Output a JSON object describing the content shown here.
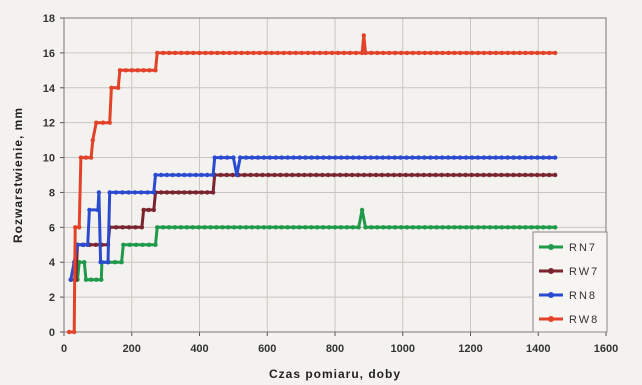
{
  "chart_data": {
    "type": "line",
    "title": "",
    "xlabel": "Czas pomiaru, doby",
    "ylabel": "Rozwarstwienie, mm",
    "xlim": [
      0,
      1600
    ],
    "ylim": [
      0,
      18
    ],
    "x_ticks": [
      0,
      200,
      400,
      600,
      800,
      1000,
      1200,
      1400,
      1600
    ],
    "y_ticks": [
      0,
      2,
      4,
      6,
      8,
      10,
      12,
      14,
      16,
      18
    ],
    "grid": true,
    "legend_position": "bottom-right",
    "series": [
      {
        "name": "RN7",
        "color": "#1f9a4a",
        "points": [
          [
            20,
            3
          ],
          [
            40,
            3
          ],
          [
            45,
            4
          ],
          [
            60,
            4
          ],
          [
            65,
            3
          ],
          [
            110,
            3
          ],
          [
            112,
            4
          ],
          [
            170,
            4
          ],
          [
            175,
            5
          ],
          [
            270,
            5
          ],
          [
            275,
            6
          ],
          [
            870,
            6
          ],
          [
            880,
            7
          ],
          [
            890,
            6
          ],
          [
            1450,
            6
          ]
        ]
      },
      {
        "name": "RW7",
        "color": "#7a2430",
        "points": [
          [
            20,
            3
          ],
          [
            35,
            3
          ],
          [
            40,
            5
          ],
          [
            130,
            5
          ],
          [
            135,
            6
          ],
          [
            230,
            6
          ],
          [
            235,
            7
          ],
          [
            265,
            7
          ],
          [
            270,
            8
          ],
          [
            440,
            8
          ],
          [
            445,
            9
          ],
          [
            1450,
            9
          ]
        ]
      },
      {
        "name": "RN8",
        "color": "#2a4bd0",
        "points": [
          [
            20,
            3
          ],
          [
            30,
            4
          ],
          [
            40,
            5
          ],
          [
            70,
            5
          ],
          [
            75,
            7
          ],
          [
            100,
            7
          ],
          [
            103,
            8
          ],
          [
            108,
            4
          ],
          [
            130,
            4
          ],
          [
            135,
            8
          ],
          [
            265,
            8
          ],
          [
            270,
            9
          ],
          [
            440,
            9
          ],
          [
            445,
            10
          ],
          [
            500,
            10
          ],
          [
            510,
            9
          ],
          [
            520,
            10
          ],
          [
            1450,
            10
          ]
        ]
      },
      {
        "name": "RW8",
        "color": "#e3422a",
        "points": [
          [
            15,
            0
          ],
          [
            30,
            0
          ],
          [
            33,
            6
          ],
          [
            45,
            6
          ],
          [
            50,
            10
          ],
          [
            80,
            10
          ],
          [
            85,
            11
          ],
          [
            95,
            12
          ],
          [
            135,
            12
          ],
          [
            140,
            14
          ],
          [
            160,
            14
          ],
          [
            165,
            15
          ],
          [
            270,
            15
          ],
          [
            275,
            16
          ],
          [
            880,
            16
          ],
          [
            885,
            17
          ],
          [
            890,
            16
          ],
          [
            1450,
            16
          ]
        ]
      }
    ]
  }
}
